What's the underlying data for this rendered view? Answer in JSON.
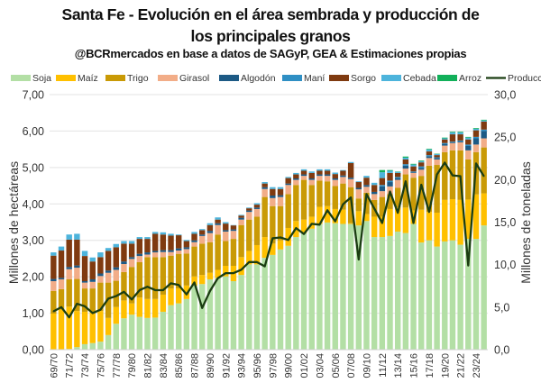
{
  "chart_data": {
    "type": "bar",
    "stacked": true,
    "title": "Santa Fe - Evolución en el área sembrada y producción de los principales granos",
    "title_line1": "Santa Fe - Evolución en el área sembrada y producción de",
    "title_line2": "los principales granos",
    "subtitle": "@BCRmercados en base a datos de SAGyP, GEA & Estimaciones propias",
    "ylabel": "Millones de hectáreas",
    "y2label": "Millones de toneladas",
    "ylim": [
      0,
      7
    ],
    "y2lim": [
      0,
      30
    ],
    "yticks": [
      "0,00",
      "1,00",
      "2,00",
      "3,00",
      "4,00",
      "5,00",
      "6,00",
      "7,00"
    ],
    "y2ticks": [
      "0,0",
      "5,0",
      "10,0",
      "15,0",
      "20,0",
      "25,0",
      "30,0"
    ],
    "grid": true,
    "legend_position": "top",
    "categories": [
      "69/70",
      "70/71",
      "71/72",
      "72/73",
      "73/74",
      "74/75",
      "75/76",
      "76/77",
      "77/78",
      "78/79",
      "79/80",
      "80/81",
      "81/82",
      "82/83",
      "83/84",
      "84/85",
      "85/86",
      "86/87",
      "87/88",
      "88/89",
      "89/90",
      "90/91",
      "91/92",
      "92/93",
      "93/94",
      "94/95",
      "95/96",
      "96/97",
      "97/98",
      "98/99",
      "99/00",
      "00/01",
      "01/02",
      "02/03",
      "03/04",
      "04/05",
      "05/06",
      "06/07",
      "07/08",
      "08/09",
      "09/10",
      "10/11",
      "11/12",
      "12/13",
      "13/14",
      "14/15",
      "15/16",
      "16/17",
      "17/18",
      "18/19",
      "19/20",
      "20/21",
      "21/22",
      "22/23",
      "23/24",
      "24/25"
    ],
    "series": [
      {
        "name": "Soja",
        "color": "#b3dfa5",
        "values": [
          0,
          0,
          0.02,
          0.07,
          0.15,
          0.18,
          0.22,
          0.4,
          0.71,
          0.86,
          0.96,
          0.9,
          0.87,
          0.88,
          1.04,
          1.22,
          1.27,
          1.39,
          1.76,
          1.8,
          1.93,
          1.97,
          2.01,
          1.88,
          2.05,
          2.34,
          2.34,
          2.52,
          2.6,
          2.75,
          2.85,
          3.09,
          3.2,
          3.32,
          3.45,
          3.49,
          3.47,
          3.45,
          3.45,
          3.41,
          3.53,
          3.09,
          3.09,
          3.12,
          3.24,
          3.2,
          3.45,
          2.94,
          3.0,
          2.83,
          2.97,
          3.0,
          2.88,
          3.04,
          3.04,
          3.41
        ]
      },
      {
        "name": "Maíz",
        "color": "#ffc000",
        "values": [
          0.99,
          1.1,
          1.16,
          0.99,
          0.89,
          0.84,
          0.84,
          0.47,
          0.46,
          0.49,
          0.31,
          0.53,
          0.52,
          0.51,
          0.47,
          0.46,
          0.41,
          0.37,
          0.25,
          0.25,
          0.18,
          0.22,
          0.29,
          0.42,
          0.49,
          0.37,
          0.53,
          0.57,
          0.31,
          0.25,
          0.49,
          0.44,
          0.37,
          0.33,
          0.47,
          0.45,
          0.39,
          0.39,
          0.02,
          0.39,
          0.19,
          0.56,
          0.56,
          0.74,
          0.66,
          0.7,
          0.37,
          0.9,
          0.78,
          0.93,
          1.14,
          1.13,
          1.23,
          1.08,
          1.22,
          0.88
        ]
      },
      {
        "name": "Trigo",
        "color": "#c99a06",
        "values": [
          0.62,
          0.56,
          0.75,
          0.88,
          0.64,
          0.66,
          0.78,
          0.97,
          0.72,
          0.78,
          1.0,
          0.97,
          1.15,
          1.15,
          1.03,
          0.9,
          0.95,
          0.88,
          0.82,
          0.86,
          0.84,
          0.97,
          0.68,
          0.74,
          0.88,
          0.86,
          0.78,
          1.1,
          1.03,
          0.94,
          0.93,
          0.99,
          1.09,
          0.87,
          0.72,
          0.68,
          0.63,
          0.72,
          0.99,
          0.35,
          0.59,
          0.46,
          0.54,
          0.41,
          0.54,
          0.91,
          0.9,
          0.93,
          1.27,
          1.31,
          1.31,
          1.34,
          1.36,
          1.1,
          1.16,
          1.26
        ]
      },
      {
        "name": "Girasol",
        "color": "#f2ad88",
        "values": [
          0.27,
          0.27,
          0.28,
          0.31,
          0.16,
          0.18,
          0.18,
          0.27,
          0.3,
          0.22,
          0.22,
          0.17,
          0.07,
          0.13,
          0.14,
          0.1,
          0.09,
          0.12,
          0.12,
          0.21,
          0.25,
          0.26,
          0.26,
          0.22,
          0.15,
          0.21,
          0.21,
          0.22,
          0.22,
          0.25,
          0.25,
          0.14,
          0.11,
          0.14,
          0.13,
          0.15,
          0.17,
          0.18,
          0.22,
          0.25,
          0.16,
          0.16,
          0.16,
          0.21,
          0.22,
          0.16,
          0.13,
          0.17,
          0.21,
          0.15,
          0.18,
          0.2,
          0.22,
          0.25,
          0.21,
          0.25
        ]
      },
      {
        "name": "Algodón",
        "color": "#1d5a85",
        "values": [
          0.06,
          0.04,
          0.06,
          0.06,
          0.04,
          0.07,
          0.07,
          0.06,
          0.07,
          0.07,
          0.05,
          0.06,
          0.06,
          0.04,
          0.05,
          0.05,
          0.06,
          0.05,
          0.05,
          0.04,
          0.06,
          0.05,
          0.04,
          0.04,
          0.05,
          0.04,
          0.04,
          0.05,
          0.07,
          0.05,
          0.04,
          0.04,
          0.04,
          0.04,
          0.04,
          0.04,
          0.04,
          0.04,
          0.04,
          0.04,
          0.05,
          0.06,
          0.13,
          0.12,
          0.05,
          0.08,
          0.02,
          0.05,
          0.05,
          0.04,
          0.04,
          0.02,
          0.03,
          0.12,
          0.17,
          0.2
        ]
      },
      {
        "name": "Maní",
        "color": "#2f8fc4",
        "values": [
          0,
          0,
          0,
          0,
          0,
          0,
          0,
          0,
          0,
          0,
          0,
          0,
          0,
          0,
          0,
          0,
          0,
          0,
          0,
          0,
          0,
          0,
          0,
          0,
          0,
          0,
          0,
          0,
          0,
          0,
          0,
          0,
          0,
          0,
          0,
          0,
          0,
          0,
          0,
          0,
          0,
          0,
          0.04,
          0.04,
          0.03,
          0.04,
          0.02,
          0.04,
          0.03,
          0.02,
          0.03,
          0.02,
          0.02,
          0.04,
          0.04,
          0.04
        ]
      },
      {
        "name": "Sorgo",
        "color": "#7f3a10",
        "values": [
          0.64,
          0.75,
          0.75,
          0.71,
          0.69,
          0.49,
          0.45,
          0.54,
          0.55,
          0.49,
          0.37,
          0.41,
          0.37,
          0.47,
          0.43,
          0.4,
          0.36,
          0.17,
          0.18,
          0.12,
          0.16,
          0.1,
          0.18,
          0.11,
          0.06,
          0.06,
          0.08,
          0.1,
          0.18,
          0.17,
          0.15,
          0.11,
          0.1,
          0.15,
          0.1,
          0.1,
          0.12,
          0.13,
          0.4,
          0.16,
          0.2,
          0.19,
          0.19,
          0.21,
          0.11,
          0.13,
          0.14,
          0.11,
          0.1,
          0.06,
          0.1,
          0.2,
          0.17,
          0.14,
          0.18,
          0.22
        ]
      },
      {
        "name": "Cebada",
        "color": "#4db4dc",
        "values": [
          0.09,
          0.11,
          0.14,
          0.16,
          0.14,
          0.11,
          0.13,
          0.08,
          0.09,
          0.07,
          0.07,
          0.05,
          0.05,
          0.05,
          0.06,
          0.05,
          0.02,
          0.03,
          0.05,
          0.03,
          0.05,
          0.06,
          0.04,
          0.01,
          0.02,
          0.02,
          0.04,
          0.04,
          0.05,
          0.05,
          0.03,
          0.04,
          0.04,
          0.04,
          0.04,
          0.04,
          0.04,
          0.02,
          0.03,
          0.02,
          0.05,
          0.06,
          0.16,
          0.06,
          0.03,
          0.05,
          0.05,
          0.03,
          0.05,
          0.03,
          0.03,
          0.05,
          0.05,
          0.05,
          0.04,
          0.03
        ]
      },
      {
        "name": "Arroz",
        "color": "#12b05a",
        "values": [
          0,
          0,
          0,
          0,
          0,
          0,
          0,
          0,
          0,
          0,
          0,
          0,
          0,
          0,
          0,
          0,
          0,
          0,
          0,
          0,
          0,
          0,
          0,
          0,
          0,
          0,
          0,
          0,
          0,
          0,
          0,
          0,
          0,
          0,
          0,
          0,
          0,
          0,
          0,
          0,
          0,
          0,
          0.06,
          0.02,
          0.01,
          0.03,
          0.02,
          0.02,
          0.02,
          0.01,
          0.02,
          0.02,
          0.02,
          0.02,
          0.02,
          0.02
        ]
      }
    ],
    "line_series": {
      "name": "Producción Total",
      "color": "#1b3d12",
      "axis": "right",
      "values": [
        4.5,
        5.0,
        3.8,
        5.4,
        5.1,
        4.3,
        4.7,
        6.0,
        6.3,
        6.8,
        5.9,
        7.0,
        7.4,
        7.0,
        7.0,
        7.8,
        7.6,
        6.5,
        7.9,
        4.9,
        6.9,
        8.4,
        9.0,
        9.0,
        9.4,
        10.3,
        10.3,
        9.8,
        13.1,
        13.2,
        12.9,
        14.3,
        13.6,
        14.8,
        14.7,
        16.4,
        15.1,
        17.1,
        17.9,
        10.6,
        18.3,
        16.6,
        14.9,
        18.6,
        16.1,
        19.8,
        14.9,
        19.4,
        16.2,
        20.6,
        22.0,
        20.5,
        20.4,
        9.9,
        21.9,
        20.4
      ]
    }
  }
}
